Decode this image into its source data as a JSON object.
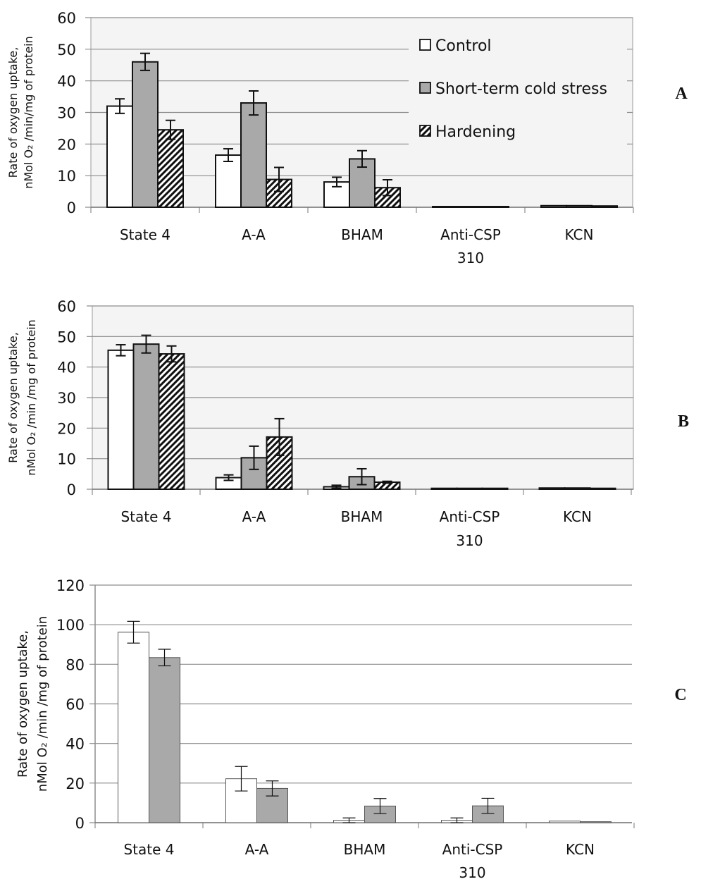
{
  "chart_data": [
    {
      "panel": "A",
      "type": "bar",
      "title": "",
      "xlabel": "",
      "ylabel_lines": [
        "Rate of oxygen uptake,",
        "nMol O₂ /min/mg of protein"
      ],
      "ylim": [
        0,
        60
      ],
      "yticks": [
        0,
        10,
        20,
        30,
        40,
        50,
        60
      ],
      "grid": true,
      "legend_position": "top-right",
      "categories": [
        [
          "State 4"
        ],
        [
          "A-A"
        ],
        [
          "BHAM"
        ],
        [
          "Anti-CSP",
          "310"
        ],
        [
          "KCN"
        ]
      ],
      "series": [
        {
          "name": "Control",
          "fill": "white",
          "values": [
            32,
            16.5,
            8,
            0.2,
            0.5
          ],
          "errors": [
            2.3,
            2,
            1.5,
            0,
            0
          ]
        },
        {
          "name": "Short-term cold stress",
          "fill": "gray",
          "values": [
            46,
            33,
            15.3,
            0.2,
            0.5
          ],
          "errors": [
            2.7,
            3.8,
            2.6,
            0,
            0
          ]
        },
        {
          "name": "Hardening",
          "fill": "hatch",
          "values": [
            24.5,
            8.8,
            6.2,
            0.2,
            0.4
          ],
          "errors": [
            3,
            3.8,
            2.5,
            0,
            0
          ]
        }
      ]
    },
    {
      "panel": "B",
      "type": "bar",
      "title": "",
      "xlabel": "",
      "ylabel_lines": [
        "Rate of oxygen uptake,",
        "nMol O₂ /min /mg of protein"
      ],
      "ylim": [
        0,
        60
      ],
      "yticks": [
        0,
        10,
        20,
        30,
        40,
        50,
        60
      ],
      "grid": true,
      "legend_position": "none",
      "categories": [
        [
          "State 4"
        ],
        [
          "A-A"
        ],
        [
          "BHAM"
        ],
        [
          "Anti-CSP",
          "310"
        ],
        [
          "KCN"
        ]
      ],
      "series": [
        {
          "name": "Control",
          "fill": "white",
          "values": [
            45.5,
            3.8,
            0.8,
            0.3,
            0.4
          ],
          "errors": [
            1.8,
            0.9,
            0.5,
            0,
            0
          ]
        },
        {
          "name": "Short-term cold stress",
          "fill": "gray",
          "values": [
            47.5,
            10.3,
            4.1,
            0.3,
            0.4
          ],
          "errors": [
            2.9,
            3.8,
            2.6,
            0,
            0
          ]
        },
        {
          "name": "Hardening",
          "fill": "hatch",
          "values": [
            44.3,
            17.1,
            2.3,
            0.3,
            0.3
          ],
          "errors": [
            2.6,
            6,
            0.3,
            0,
            0
          ]
        }
      ]
    },
    {
      "panel": "C",
      "type": "bar",
      "title": "",
      "xlabel": "",
      "ylabel_lines": [
        "Rate of oxygen uptake,",
        "nMol O₂ /min /mg of protein"
      ],
      "ylim": [
        0,
        120
      ],
      "yticks": [
        0,
        20,
        40,
        60,
        80,
        100,
        120
      ],
      "grid": true,
      "legend_position": "none",
      "categories": [
        [
          "State 4"
        ],
        [
          "A-A"
        ],
        [
          "BHAM"
        ],
        [
          "Anti-CSP",
          "310"
        ],
        [
          "KCN"
        ]
      ],
      "series": [
        {
          "name": "Control",
          "fill": "white",
          "values": [
            96.2,
            22.2,
            1.2,
            1.2,
            0.8
          ],
          "errors": [
            5.5,
            6.2,
            1.2,
            1.2,
            0
          ]
        },
        {
          "name": "Short-term cold stress",
          "fill": "gray",
          "values": [
            83.4,
            17.3,
            8.4,
            8.5,
            0.5
          ],
          "errors": [
            4.2,
            3.8,
            3.8,
            3.8,
            0
          ]
        }
      ]
    }
  ],
  "legend": {
    "items": [
      "Control",
      "Short-term cold stress",
      "Hardening"
    ]
  },
  "colors": {
    "control_fill": "#ffffff",
    "stress_fill": "#a9a9a9",
    "hatch_line": "#111111",
    "grid": "#8c8c8c",
    "plot_bg_ab": "#f4f4f4"
  }
}
